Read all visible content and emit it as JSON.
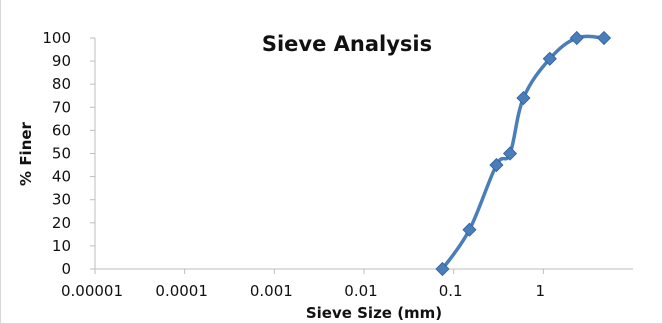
{
  "chart_data": {
    "type": "scatter",
    "title": "Sieve Analysis",
    "xlabel": "Sieve Size (mm)",
    "ylabel": "% Finer",
    "x_scale": "log",
    "xlim": [
      1e-05,
      10
    ],
    "ylim": [
      0,
      100
    ],
    "x_tick_values": [
      1e-05,
      0.0001,
      0.001,
      0.01,
      0.1,
      1
    ],
    "x_tick_labels": [
      "0.00001",
      "0.0001",
      "0.001",
      "0.01",
      "0.1",
      "1"
    ],
    "y_ticks": [
      0,
      10,
      20,
      30,
      40,
      50,
      60,
      70,
      80,
      90,
      100
    ],
    "grid": false,
    "legend": "none",
    "series": [
      {
        "x": [
          0.075,
          0.15,
          0.3,
          0.425,
          0.6,
          1.18,
          2.36,
          4.75
        ],
        "y": [
          0,
          17,
          45,
          50,
          74,
          91,
          100,
          100
        ],
        "color": "#4a7ebb",
        "marker": "diamond",
        "line": "smooth"
      }
    ]
  }
}
